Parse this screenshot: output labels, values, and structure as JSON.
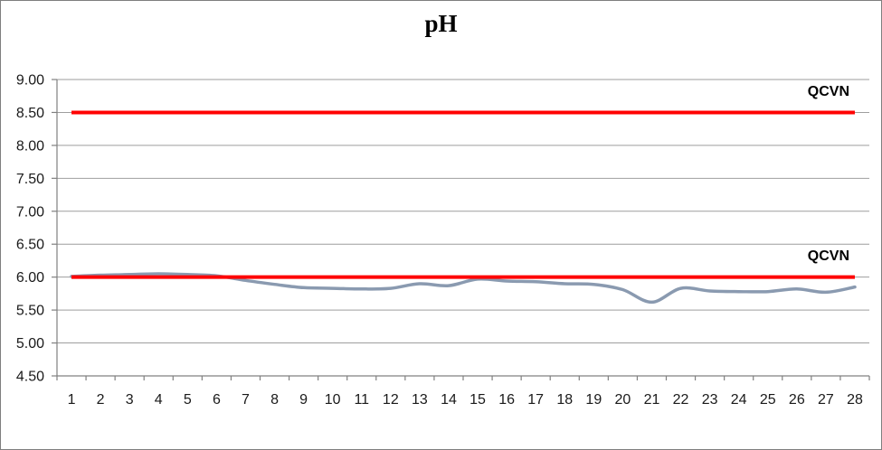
{
  "title": "pH",
  "chart_data": {
    "type": "line",
    "title": "pH",
    "categories": [
      "1",
      "2",
      "3",
      "4",
      "5",
      "6",
      "7",
      "8",
      "9",
      "10",
      "11",
      "12",
      "13",
      "14",
      "15",
      "16",
      "17",
      "18",
      "19",
      "20",
      "21",
      "22",
      "23",
      "24",
      "25",
      "26",
      "27",
      "28"
    ],
    "series": [
      {
        "name": "pH",
        "color": "#8A9AB0",
        "smooth": true,
        "values": [
          6.01,
          6.03,
          6.04,
          6.05,
          6.04,
          6.02,
          5.95,
          5.89,
          5.84,
          5.83,
          5.82,
          5.83,
          5.9,
          5.87,
          5.97,
          5.94,
          5.93,
          5.9,
          5.89,
          5.81,
          5.62,
          5.83,
          5.79,
          5.78,
          5.78,
          5.82,
          5.77,
          5.85
        ]
      }
    ],
    "limit_lines": [
      {
        "label": "QCVN",
        "value": 8.5,
        "color": "#FF0000"
      },
      {
        "label": "QCVN",
        "value": 6.0,
        "color": "#FF0000"
      }
    ],
    "ylim": [
      4.5,
      9.0
    ],
    "y_tick_step": 0.5,
    "y_tick_labels": [
      "4.50",
      "5.00",
      "5.50",
      "6.00",
      "6.50",
      "7.00",
      "7.50",
      "8.00",
      "8.50",
      "9.00"
    ],
    "xlabel": "",
    "ylabel": "",
    "grid": true,
    "legend": "none"
  },
  "style": {
    "gridline_color": "#9E9E9E",
    "axis_color": "#808080",
    "tick_label_color": "#1A1A1A",
    "frame_border_color": "#7F7F7F"
  }
}
